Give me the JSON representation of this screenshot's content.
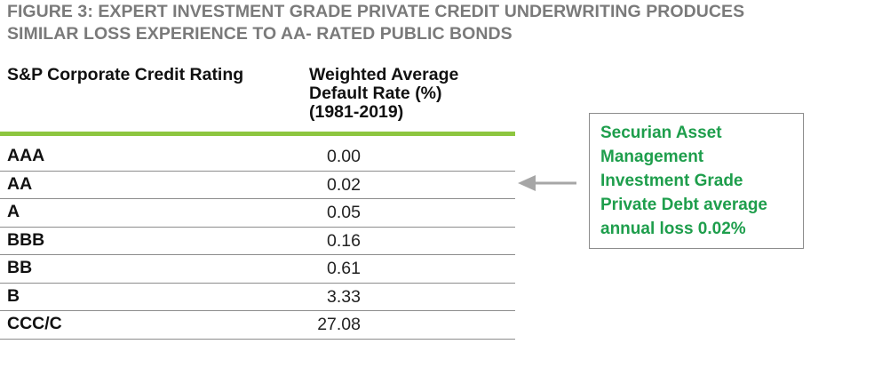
{
  "chart_data": {
    "type": "table",
    "title": [
      "FIGURE 3: EXPERT INVESTMENT GRADE PRIVATE CREDIT UNDERWRITING PRODUCES",
      "SIMILAR LOSS EXPERIENCE TO AA- RATED PUBLIC BONDS"
    ],
    "columns": {
      "rating": "S&P Corporate Credit Rating",
      "rate": [
        "Weighted Average",
        "Default Rate (%)",
        "(1981-2019)"
      ]
    },
    "rows": [
      {
        "rating": "AAA",
        "rate": "0.00"
      },
      {
        "rating": "AA",
        "rate": "0.02"
      },
      {
        "rating": "A",
        "rate": "0.05"
      },
      {
        "rating": "BBB",
        "rate": "0.16"
      },
      {
        "rating": "BB",
        "rate": "0.61"
      },
      {
        "rating": "B",
        "rate": "3.33"
      },
      {
        "rating": "CCC/C",
        "rate": "27.08"
      }
    ],
    "annotation": {
      "lines": [
        "Securian Asset",
        "Management",
        "Investment Grade",
        "Private Debt average",
        "annual loss 0.02%"
      ],
      "points_to_row": "AA"
    }
  },
  "colors": {
    "title": "#7a7a7a",
    "header_rule": "#8dc63f",
    "row_rule": "#8c8c8c",
    "callout_text": "#1e9e4c",
    "arrow": "#a6a6a6"
  },
  "icons": {
    "arrow": "left-arrow-icon"
  }
}
